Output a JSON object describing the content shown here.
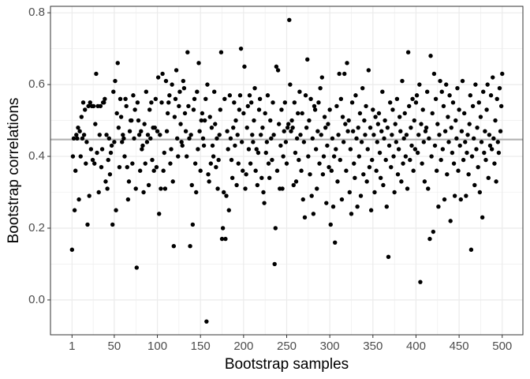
{
  "chart_data": {
    "type": "scatter",
    "x_label": "Bootstrap samples",
    "y_label": "Bootstrap correlations",
    "xlim": [
      -24,
      524
    ],
    "ylim": [
      -0.097,
      0.818
    ],
    "xticks": [
      1,
      50,
      100,
      150,
      200,
      250,
      300,
      350,
      400,
      450,
      500
    ],
    "yticks": [
      {
        "value": 0,
        "label": "0.0"
      },
      0.2,
      0.4,
      0.6,
      0.8
    ],
    "grid": true,
    "color": "#000000",
    "reference_line": {
      "y": 0.447,
      "color": "#b3b3b3"
    },
    "x": [
      1,
      2,
      3,
      4,
      5,
      6,
      7,
      8,
      9,
      10,
      11,
      12,
      13,
      14,
      15,
      16,
      17,
      18,
      19,
      20,
      21,
      22,
      23,
      24,
      25,
      26,
      27,
      28,
      29,
      30,
      31,
      32,
      33,
      34,
      35,
      36,
      37,
      38,
      39,
      40,
      41,
      42,
      43,
      44,
      45,
      46,
      47,
      48,
      49,
      50,
      51,
      52,
      53,
      54,
      55,
      56,
      57,
      58,
      59,
      60,
      61,
      62,
      63,
      64,
      65,
      66,
      67,
      68,
      69,
      70,
      71,
      72,
      73,
      74,
      75,
      76,
      77,
      78,
      79,
      80,
      81,
      82,
      83,
      84,
      85,
      86,
      87,
      88,
      89,
      90,
      91,
      92,
      93,
      94,
      95,
      96,
      97,
      98,
      99,
      100,
      101,
      102,
      103,
      104,
      105,
      106,
      107,
      108,
      109,
      110,
      111,
      112,
      113,
      114,
      115,
      116,
      117,
      118,
      119,
      120,
      121,
      122,
      123,
      124,
      125,
      126,
      127,
      128,
      129,
      130,
      131,
      132,
      133,
      134,
      135,
      136,
      137,
      138,
      139,
      140,
      141,
      142,
      143,
      144,
      145,
      146,
      147,
      148,
      149,
      150,
      151,
      152,
      153,
      154,
      155,
      156,
      157,
      158,
      159,
      160,
      161,
      162,
      163,
      164,
      165,
      166,
      167,
      168,
      169,
      170,
      171,
      172,
      173,
      174,
      175,
      176,
      177,
      178,
      179,
      180,
      181,
      182,
      183,
      184,
      185,
      186,
      187,
      188,
      189,
      190,
      191,
      192,
      193,
      194,
      195,
      196,
      197,
      198,
      199,
      200,
      201,
      202,
      203,
      204,
      205,
      206,
      207,
      208,
      209,
      210,
      211,
      212,
      213,
      214,
      215,
      216,
      217,
      218,
      219,
      220,
      221,
      222,
      223,
      224,
      225,
      226,
      227,
      228,
      229,
      230,
      231,
      232,
      233,
      234,
      235,
      236,
      237,
      238,
      239,
      240,
      241,
      242,
      243,
      244,
      245,
      246,
      247,
      248,
      249,
      250,
      251,
      252,
      253,
      254,
      255,
      256,
      257,
      258,
      259,
      260,
      261,
      262,
      263,
      264,
      265,
      266,
      267,
      268,
      269,
      270,
      271,
      272,
      273,
      274,
      275,
      276,
      277,
      278,
      279,
      280,
      281,
      282,
      283,
      284,
      285,
      286,
      287,
      288,
      289,
      290,
      291,
      292,
      293,
      294,
      295,
      296,
      297,
      298,
      299,
      300,
      301,
      302,
      303,
      304,
      305,
      306,
      307,
      308,
      309,
      310,
      311,
      312,
      313,
      314,
      315,
      316,
      317,
      318,
      319,
      320,
      321,
      322,
      323,
      324,
      325,
      326,
      327,
      328,
      329,
      330,
      331,
      332,
      333,
      334,
      335,
      336,
      337,
      338,
      339,
      340,
      341,
      342,
      343,
      344,
      345,
      346,
      347,
      348,
      349,
      350,
      351,
      352,
      353,
      354,
      355,
      356,
      357,
      358,
      359,
      360,
      361,
      362,
      363,
      364,
      365,
      366,
      367,
      368,
      369,
      370,
      371,
      372,
      373,
      374,
      375,
      376,
      377,
      378,
      379,
      380,
      381,
      382,
      383,
      384,
      385,
      386,
      387,
      388,
      389,
      390,
      391,
      392,
      393,
      394,
      395,
      396,
      397,
      398,
      399,
      400,
      401,
      402,
      403,
      404,
      405,
      406,
      407,
      408,
      409,
      410,
      411,
      412,
      413,
      414,
      415,
      416,
      417,
      418,
      419,
      420,
      421,
      422,
      423,
      424,
      425,
      426,
      427,
      428,
      429,
      430,
      431,
      432,
      433,
      434,
      435,
      436,
      437,
      438,
      439,
      440,
      441,
      442,
      443,
      444,
      445,
      446,
      447,
      448,
      449,
      450,
      451,
      452,
      453,
      454,
      455,
      456,
      457,
      458,
      459,
      460,
      461,
      462,
      463,
      464,
      465,
      466,
      467,
      468,
      469,
      470,
      471,
      472,
      473,
      474,
      475,
      476,
      477,
      478,
      479,
      480,
      481,
      482,
      483,
      484,
      485,
      486,
      487,
      488,
      489,
      490,
      491,
      492,
      493,
      494,
      495,
      496,
      497,
      498,
      499,
      500
    ],
    "values": [
      0.14,
      0.4,
      0.45,
      0.25,
      0.36,
      0.46,
      0.45,
      0.48,
      0.28,
      0.47,
      0.4,
      0.51,
      0.45,
      0.55,
      0.46,
      0.53,
      0.38,
      0.44,
      0.21,
      0.54,
      0.29,
      0.55,
      0.42,
      0.54,
      0.39,
      0.54,
      0.38,
      0.49,
      0.63,
      0.41,
      0.54,
      0.3,
      0.46,
      0.54,
      0.37,
      0.42,
      0.55,
      0.55,
      0.56,
      0.33,
      0.46,
      0.31,
      0.39,
      0.45,
      0.35,
      0.41,
      0.43,
      0.21,
      0.58,
      0.44,
      0.61,
      0.25,
      0.52,
      0.66,
      0.48,
      0.37,
      0.56,
      0.51,
      0.44,
      0.46,
      0.45,
      0.4,
      0.56,
      0.54,
      0.37,
      0.28,
      0.33,
      0.47,
      0.5,
      0.5,
      0.38,
      0.57,
      0.45,
      0.53,
      0.31,
      0.09,
      0.55,
      0.5,
      0.46,
      0.36,
      0.47,
      0.42,
      0.43,
      0.3,
      0.49,
      0.38,
      0.58,
      0.44,
      0.46,
      0.32,
      0.53,
      0.45,
      0.55,
      0.39,
      0.48,
      0.36,
      0.48,
      0.56,
      0.37,
      0.47,
      0.62,
      0.24,
      0.46,
      0.31,
      0.55,
      0.63,
      0.36,
      0.41,
      0.31,
      0.61,
      0.47,
      0.52,
      0.55,
      0.57,
      0.38,
      0.42,
      0.6,
      0.33,
      0.15,
      0.51,
      0.56,
      0.64,
      0.45,
      0.4,
      0.54,
      0.58,
      0.49,
      0.44,
      0.43,
      0.61,
      0.59,
      0.52,
      0.47,
      0.4,
      0.69,
      0.54,
      0.45,
      0.15,
      0.46,
      0.32,
      0.21,
      0.53,
      0.56,
      0.38,
      0.3,
      0.58,
      0.42,
      0.66,
      0.47,
      0.36,
      0.5,
      0.52,
      0.45,
      0.43,
      0.5,
      0.56,
      -0.06,
      0.6,
      0.35,
      0.33,
      0.51,
      0.38,
      0.48,
      0.43,
      0.4,
      0.58,
      0.49,
      0.37,
      0.45,
      0.31,
      0.39,
      0.46,
      0.53,
      0.69,
      0.17,
      0.2,
      0.3,
      0.56,
      0.17,
      0.29,
      0.47,
      0.42,
      0.25,
      0.57,
      0.45,
      0.39,
      0.34,
      0.48,
      0.55,
      0.43,
      0.5,
      0.32,
      0.46,
      0.38,
      0.53,
      0.57,
      0.7,
      0.44,
      0.36,
      0.52,
      0.65,
      0.31,
      0.35,
      0.48,
      0.54,
      0.42,
      0.57,
      0.38,
      0.55,
      0.46,
      0.44,
      0.5,
      0.59,
      0.36,
      0.42,
      0.32,
      0.41,
      0.53,
      0.56,
      0.46,
      0.34,
      0.48,
      0.3,
      0.27,
      0.52,
      0.41,
      0.44,
      0.57,
      0.38,
      0.34,
      0.5,
      0.45,
      0.39,
      0.55,
      0.46,
      0.1,
      0.2,
      0.65,
      0.36,
      0.64,
      0.49,
      0.31,
      0.43,
      0.53,
      0.31,
      0.4,
      0.47,
      0.55,
      0.44,
      0.38,
      0.48,
      0.49,
      0.78,
      0.6,
      0.47,
      0.5,
      0.48,
      0.32,
      0.55,
      0.41,
      0.33,
      0.45,
      0.52,
      0.39,
      0.58,
      0.46,
      0.36,
      0.52,
      0.28,
      0.44,
      0.23,
      0.57,
      0.48,
      0.67,
      0.4,
      0.5,
      0.35,
      0.56,
      0.29,
      0.45,
      0.24,
      0.54,
      0.53,
      0.42,
      0.31,
      0.47,
      0.55,
      0.38,
      0.59,
      0.46,
      0.62,
      0.35,
      0.4,
      0.51,
      0.48,
      0.27,
      0.43,
      0.49,
      0.37,
      0.53,
      0.21,
      0.36,
      0.45,
      0.26,
      0.4,
      0.16,
      0.42,
      0.54,
      0.33,
      0.46,
      0.63,
      0.39,
      0.56,
      0.28,
      0.51,
      0.44,
      0.63,
      0.49,
      0.36,
      0.66,
      0.47,
      0.5,
      0.3,
      0.42,
      0.24,
      0.55,
      0.47,
      0.38,
      0.34,
      0.57,
      0.45,
      0.26,
      0.48,
      0.4,
      0.52,
      0.29,
      0.44,
      0.59,
      0.35,
      0.5,
      0.46,
      0.54,
      0.33,
      0.42,
      0.64,
      0.37,
      0.48,
      0.25,
      0.39,
      0.53,
      0.46,
      0.3,
      0.51,
      0.36,
      0.44,
      0.49,
      0.52,
      0.41,
      0.34,
      0.47,
      0.58,
      0.32,
      0.45,
      0.5,
      0.39,
      0.26,
      0.48,
      0.12,
      0.43,
      0.55,
      0.37,
      0.46,
      0.53,
      0.4,
      0.3,
      0.49,
      0.44,
      0.56,
      0.35,
      0.42,
      0.51,
      0.47,
      0.33,
      0.61,
      0.38,
      0.45,
      0.52,
      0.4,
      0.46,
      0.31,
      0.69,
      0.54,
      0.39,
      0.48,
      0.43,
      0.56,
      0.36,
      0.5,
      0.42,
      0.55,
      0.57,
      0.41,
      0.46,
      0.6,
      0.05,
      0.49,
      0.38,
      0.53,
      0.44,
      0.33,
      0.47,
      0.48,
      0.58,
      0.31,
      0.45,
      0.17,
      0.68,
      0.4,
      0.52,
      0.19,
      0.63,
      0.43,
      0.56,
      0.36,
      0.49,
      0.26,
      0.46,
      0.61,
      0.39,
      0.58,
      0.42,
      0.54,
      0.28,
      0.47,
      0.6,
      0.35,
      0.51,
      0.44,
      0.57,
      0.22,
      0.48,
      0.41,
      0.55,
      0.38,
      0.29,
      0.5,
      0.45,
      0.59,
      0.36,
      0.53,
      0.43,
      0.28,
      0.47,
      0.61,
      0.39,
      0.52,
      0.44,
      0.29,
      0.41,
      0.46,
      0.35,
      0.49,
      0.57,
      0.14,
      0.4,
      0.54,
      0.45,
      0.32,
      0.6,
      0.42,
      0.48,
      0.37,
      0.55,
      0.3,
      0.51,
      0.44,
      0.23,
      0.58,
      0.41,
      0.47,
      0.39,
      0.53,
      0.6,
      0.34,
      0.46,
      0.43,
      0.57,
      0.42,
      0.62,
      0.45,
      0.38,
      0.5,
      0.33,
      0.56,
      0.44,
      0.41,
      0.59,
      0.47,
      0.54,
      0.63
    ]
  }
}
